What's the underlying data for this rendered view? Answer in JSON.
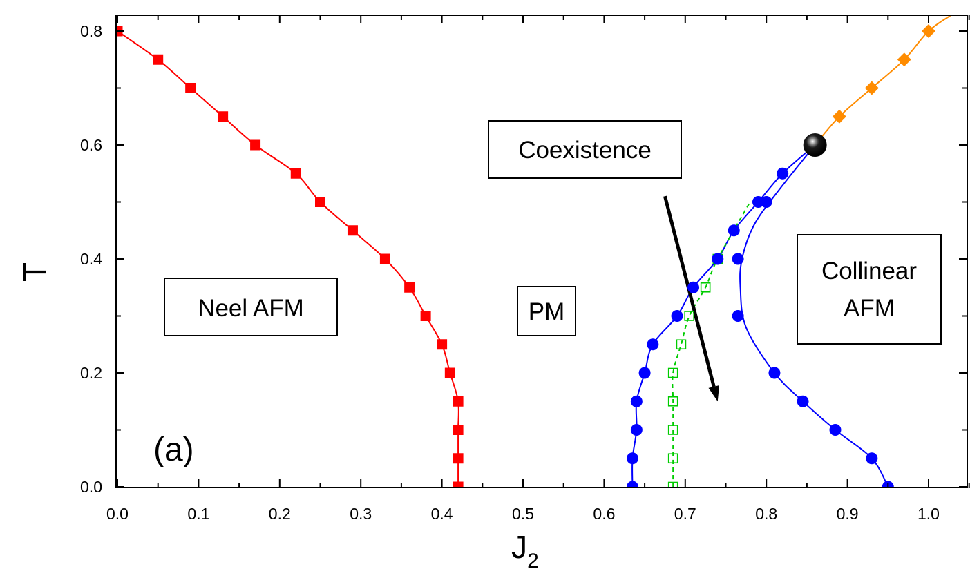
{
  "chart_data": {
    "type": "scatter",
    "xlabel": "J",
    "xlabel_subscript": "2",
    "ylabel": "T",
    "xlim": [
      0.0,
      1.05
    ],
    "ylim": [
      0.0,
      0.8
    ],
    "xticks": [
      "0.0",
      "0.1",
      "0.2",
      "0.3",
      "0.4",
      "0.5",
      "0.6",
      "0.7",
      "0.8",
      "0.9",
      "1.0"
    ],
    "yticks": [
      "0.0",
      "0.2",
      "0.4",
      "0.6",
      "0.8"
    ],
    "grid": false,
    "panel_label": "(a)",
    "annotations": [
      {
        "id": "neel",
        "lines": [
          "Neel AFM"
        ]
      },
      {
        "id": "pm",
        "lines": [
          "PM"
        ]
      },
      {
        "id": "coexistence",
        "lines": [
          "Coexistence"
        ]
      },
      {
        "id": "collinear",
        "lines": [
          "Collinear",
          "AFM"
        ]
      }
    ],
    "arrow": {
      "from": [
        0.675,
        0.51
      ],
      "to": [
        0.74,
        0.15
      ],
      "color": "#000000"
    },
    "critical_point": {
      "x": 0.86,
      "y": 0.6
    },
    "series": [
      {
        "id": "neel-boundary",
        "color": "#ff0000",
        "marker": "square-filled",
        "line": "solid",
        "points": [
          [
            0.0,
            0.8
          ],
          [
            0.05,
            0.75
          ],
          [
            0.09,
            0.7
          ],
          [
            0.13,
            0.65
          ],
          [
            0.17,
            0.6
          ],
          [
            0.22,
            0.55
          ],
          [
            0.25,
            0.5
          ],
          [
            0.29,
            0.45
          ],
          [
            0.33,
            0.4
          ],
          [
            0.36,
            0.35
          ],
          [
            0.38,
            0.3
          ],
          [
            0.4,
            0.25
          ],
          [
            0.41,
            0.2
          ],
          [
            0.42,
            0.15
          ],
          [
            0.42,
            0.1
          ],
          [
            0.42,
            0.05
          ],
          [
            0.42,
            0.0
          ]
        ]
      },
      {
        "id": "collinear-upper",
        "color": "#ff8c00",
        "marker": "diamond-filled",
        "line": "solid",
        "points": [
          [
            0.89,
            0.65
          ],
          [
            0.93,
            0.7
          ],
          [
            0.97,
            0.75
          ],
          [
            1.0,
            0.8
          ]
        ]
      },
      {
        "id": "coexistence-left",
        "color": "#0000ff",
        "marker": "circle-filled",
        "line": "solid",
        "points": [
          [
            0.635,
            0.0
          ],
          [
            0.635,
            0.05
          ],
          [
            0.64,
            0.1
          ],
          [
            0.64,
            0.15
          ],
          [
            0.65,
            0.2
          ],
          [
            0.66,
            0.25
          ],
          [
            0.69,
            0.3
          ],
          [
            0.71,
            0.35
          ],
          [
            0.74,
            0.4
          ],
          [
            0.76,
            0.45
          ],
          [
            0.79,
            0.5
          ],
          [
            0.82,
            0.55
          ]
        ]
      },
      {
        "id": "coexistence-right",
        "color": "#0000ff",
        "marker": "circle-filled",
        "line": "solid",
        "points": [
          [
            0.8,
            0.5
          ],
          [
            0.765,
            0.4
          ],
          [
            0.765,
            0.3
          ],
          [
            0.81,
            0.2
          ],
          [
            0.845,
            0.15
          ],
          [
            0.885,
            0.1
          ],
          [
            0.93,
            0.05
          ],
          [
            0.95,
            0.0
          ]
        ]
      },
      {
        "id": "transition",
        "color": "#00cc00",
        "marker": "square-open",
        "line": "dashed",
        "points": [
          [
            0.685,
            0.0
          ],
          [
            0.685,
            0.05
          ],
          [
            0.685,
            0.1
          ],
          [
            0.685,
            0.15
          ],
          [
            0.685,
            0.2
          ],
          [
            0.695,
            0.25
          ],
          [
            0.705,
            0.3
          ],
          [
            0.725,
            0.35
          ],
          [
            0.74,
            0.4
          ]
        ]
      }
    ]
  }
}
